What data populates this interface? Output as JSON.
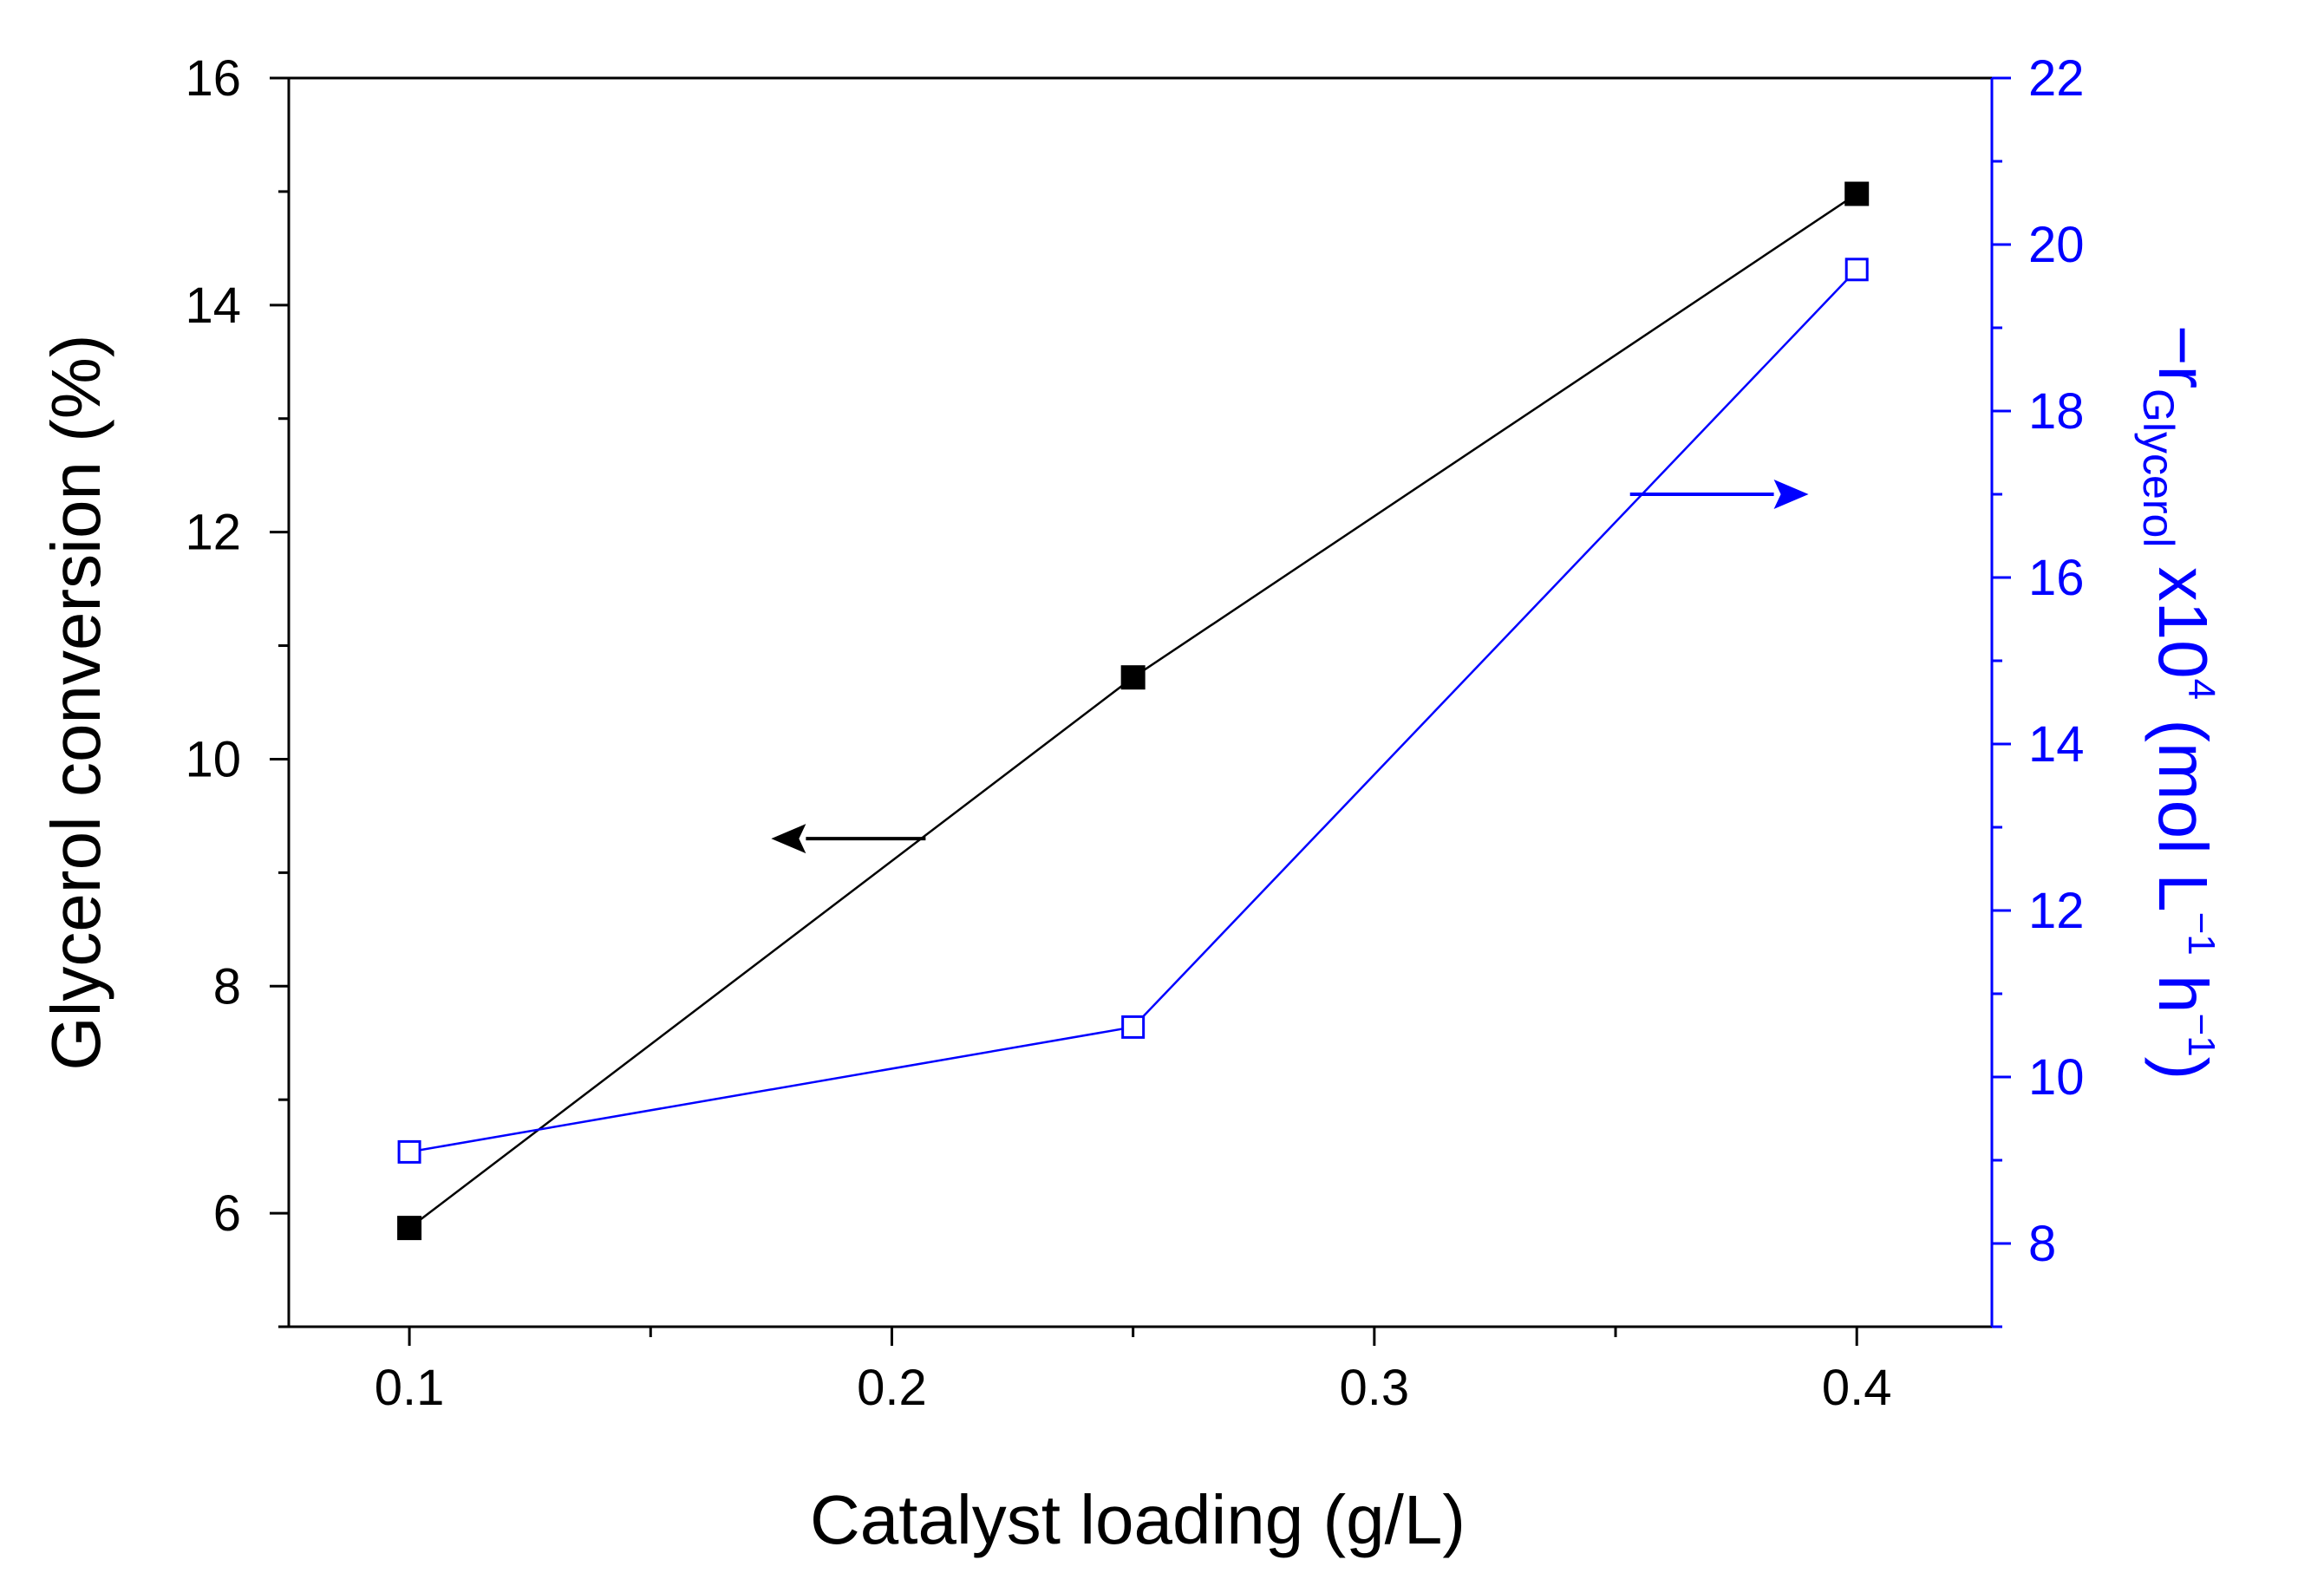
{
  "chart_data": {
    "type": "line",
    "xlabel": "Catalyst loading (g/L)",
    "ylabel": "Glycerol conversion (%)",
    "y2label": {
      "prefix": "−r",
      "subscript": "Glycerol",
      "middle": " x10",
      "power": "4",
      "units_open": " (mol L",
      "units_power1": "−1",
      "units_middle": " h",
      "units_power2": "−1",
      "units_close": ")"
    },
    "xlim": [
      0.075,
      0.428
    ],
    "ylim": [
      5,
      16
    ],
    "y2lim": [
      7,
      22
    ],
    "x_ticks": [
      0.1,
      0.2,
      0.3,
      0.4
    ],
    "x_tick_labels": [
      "0.1",
      "0.2",
      "0.3",
      "0.4"
    ],
    "x_minor_ticks": [
      0.15,
      0.25,
      0.35
    ],
    "y_ticks": [
      6,
      8,
      10,
      12,
      14,
      16
    ],
    "y_tick_labels": [
      "6",
      "8",
      "10",
      "12",
      "14",
      "16"
    ],
    "y_minor_ticks": [
      5,
      7,
      9,
      11,
      13,
      15
    ],
    "y2_ticks": [
      8,
      10,
      12,
      14,
      16,
      18,
      20,
      22
    ],
    "y2_tick_labels": [
      "8",
      "10",
      "12",
      "14",
      "16",
      "18",
      "20",
      "22"
    ],
    "y2_minor_ticks": [
      7,
      9,
      11,
      13,
      15,
      17,
      19,
      21
    ],
    "series": [
      {
        "name": "Glycerol conversion",
        "axis": "left",
        "marker": "filled-square",
        "color": "#000000",
        "x": [
          0.1,
          0.25,
          0.4
        ],
        "values": [
          5.87,
          10.72,
          14.98
        ]
      },
      {
        "name": "-r Glycerol",
        "axis": "right",
        "marker": "open-square",
        "color": "#0000ff",
        "x": [
          0.1,
          0.25,
          0.4
        ],
        "values": [
          9.1,
          10.6,
          19.7
        ]
      }
    ],
    "annotations": [
      {
        "type": "arrow",
        "direction": "left",
        "points_to": "left-axis",
        "color": "#000000",
        "x_from": 0.207,
        "x_to": 0.175,
        "y": 9.3,
        "axis": "left"
      },
      {
        "type": "arrow",
        "direction": "right",
        "points_to": "right-axis",
        "color": "#0000ff",
        "x_from": 0.353,
        "x_to": 0.39,
        "y": 17.0,
        "axis": "right"
      }
    ],
    "colors": {
      "left_axis": "#000000",
      "right_axis": "#0000ff"
    }
  }
}
